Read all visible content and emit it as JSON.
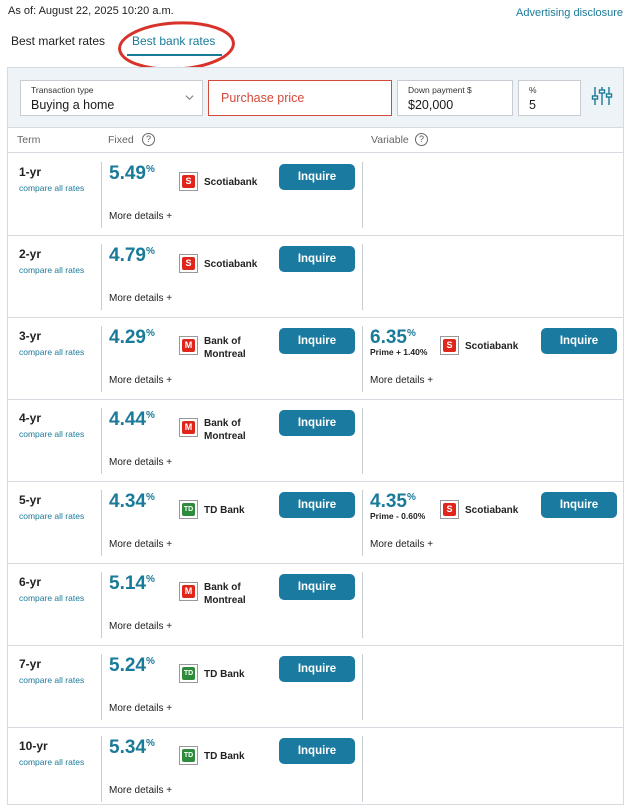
{
  "header": {
    "as_of": "As of: August 22, 2025 10:20 a.m.",
    "ad_disclosure": "Advertising disclosure"
  },
  "tabs": [
    {
      "label": "Best market rates",
      "active": false
    },
    {
      "label": "Best bank rates",
      "active": true
    }
  ],
  "filters": {
    "transaction_type_label": "Transaction type",
    "transaction_type_value": "Buying a home",
    "purchase_price_placeholder": "Purchase price",
    "down_payment_label": "Down payment $",
    "down_payment_value": "$20,000",
    "percent_label": "%",
    "percent_value": "5"
  },
  "columns": {
    "term": "Term",
    "fixed": "Fixed",
    "variable": "Variable",
    "help_glyph": "?"
  },
  "labels": {
    "compare": "compare all rates",
    "more_details": "More details +",
    "inquire": "Inquire",
    "pct": "%"
  },
  "colors": {
    "accent": "#1a7a99",
    "button": "#1a7aa0",
    "scotiabank": "#e0251b",
    "bmo": "#e0251b",
    "td": "#2e8b3c",
    "annotation": "#d8332b"
  },
  "banks": {
    "scotiabank": {
      "name": "Scotiabank",
      "icon": "scotiabank-logo-icon",
      "glyph": "S"
    },
    "bmo": {
      "name": "Bank of Montreal",
      "line1": "Bank of",
      "line2": "Montreal",
      "icon": "bmo-logo-icon",
      "glyph": "M"
    },
    "td": {
      "name": "TD Bank",
      "icon": "td-logo-icon",
      "glyph": "TD"
    }
  },
  "rows": [
    {
      "term": "1-yr",
      "fixed": {
        "rate": "5.49",
        "bank": "scotiabank"
      },
      "variable": null
    },
    {
      "term": "2-yr",
      "fixed": {
        "rate": "4.79",
        "bank": "scotiabank"
      },
      "variable": null
    },
    {
      "term": "3-yr",
      "fixed": {
        "rate": "4.29",
        "bank": "bmo"
      },
      "variable": {
        "rate": "6.35",
        "prime": "Prime + 1.40%",
        "bank": "scotiabank"
      }
    },
    {
      "term": "4-yr",
      "fixed": {
        "rate": "4.44",
        "bank": "bmo"
      },
      "variable": null
    },
    {
      "term": "5-yr",
      "fixed": {
        "rate": "4.34",
        "bank": "td"
      },
      "variable": {
        "rate": "4.35",
        "prime": "Prime - 0.60%",
        "bank": "scotiabank"
      }
    },
    {
      "term": "6-yr",
      "fixed": {
        "rate": "5.14",
        "bank": "bmo"
      },
      "variable": null
    },
    {
      "term": "7-yr",
      "fixed": {
        "rate": "5.24",
        "bank": "td"
      },
      "variable": null
    },
    {
      "term": "10-yr",
      "fixed": {
        "rate": "5.34",
        "bank": "td"
      },
      "variable": null
    }
  ]
}
